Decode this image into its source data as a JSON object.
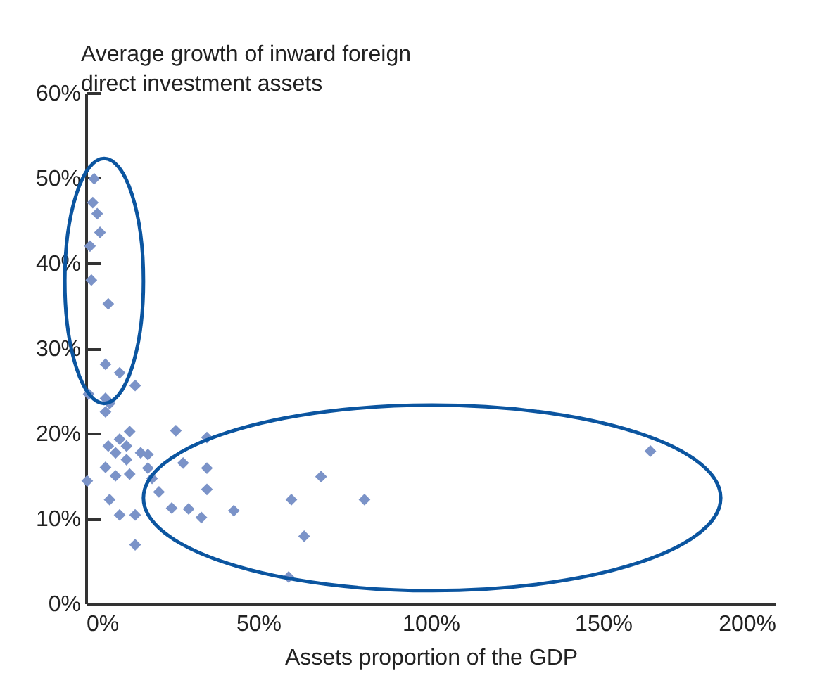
{
  "chart_data": {
    "type": "scatter",
    "ylabel": "Average growth of inward foreign direct investment assets",
    "xlabel": "Assets proportion of the GDP",
    "marker": "diamond",
    "grid": false,
    "xlim": [
      0,
      200
    ],
    "ylim": [
      0,
      60
    ],
    "xticks": [
      {
        "value": 0,
        "label": "0%"
      },
      {
        "value": 50,
        "label": "50%"
      },
      {
        "value": 100,
        "label": "100%"
      },
      {
        "value": 150,
        "label": "150%"
      },
      {
        "value": 200,
        "label": "200%"
      }
    ],
    "yticks": [
      {
        "value": 0,
        "label": "0%"
      },
      {
        "value": 10,
        "label": "10%"
      },
      {
        "value": 20,
        "label": "20%"
      },
      {
        "value": 30,
        "label": "30%"
      },
      {
        "value": 40,
        "label": "40%"
      },
      {
        "value": 50,
        "label": "50%"
      },
      {
        "value": 60,
        "label": "60%"
      }
    ],
    "series": [
      {
        "color": "#7b93c8",
        "x": [
          2.4,
          2.0,
          3.3,
          4.1,
          1.2,
          1.6,
          6.5,
          5.7,
          9.8,
          14.3,
          0.8,
          5.7,
          6.9,
          5.7,
          12.7,
          9.8,
          6.5,
          8.6,
          11.8,
          15.9,
          18.0,
          5.7,
          11.8,
          8.6,
          12.7,
          18.0,
          19.2,
          0.4,
          21.2,
          6.9,
          9.8,
          14.3,
          14.3,
          26.1,
          35.1,
          28.2,
          35.1,
          35.1,
          24.9,
          29.8,
          33.5,
          42.9,
          68.2,
          59.6,
          80.8,
          63.3,
          58.8,
          163.7
        ],
        "values": [
          49.9,
          47.1,
          45.8,
          43.6,
          42.0,
          38.0,
          35.2,
          28.1,
          27.1,
          25.6,
          24.6,
          24.1,
          23.5,
          22.5,
          20.2,
          19.3,
          18.5,
          17.7,
          18.5,
          17.7,
          17.5,
          16.0,
          16.9,
          15.0,
          15.2,
          15.9,
          14.7,
          14.4,
          13.1,
          12.2,
          10.4,
          10.4,
          6.9,
          20.3,
          19.5,
          16.5,
          15.9,
          13.4,
          11.2,
          11.1,
          10.1,
          10.9,
          14.9,
          12.2,
          12.2,
          7.9,
          3.1,
          17.9
        ]
      }
    ]
  }
}
